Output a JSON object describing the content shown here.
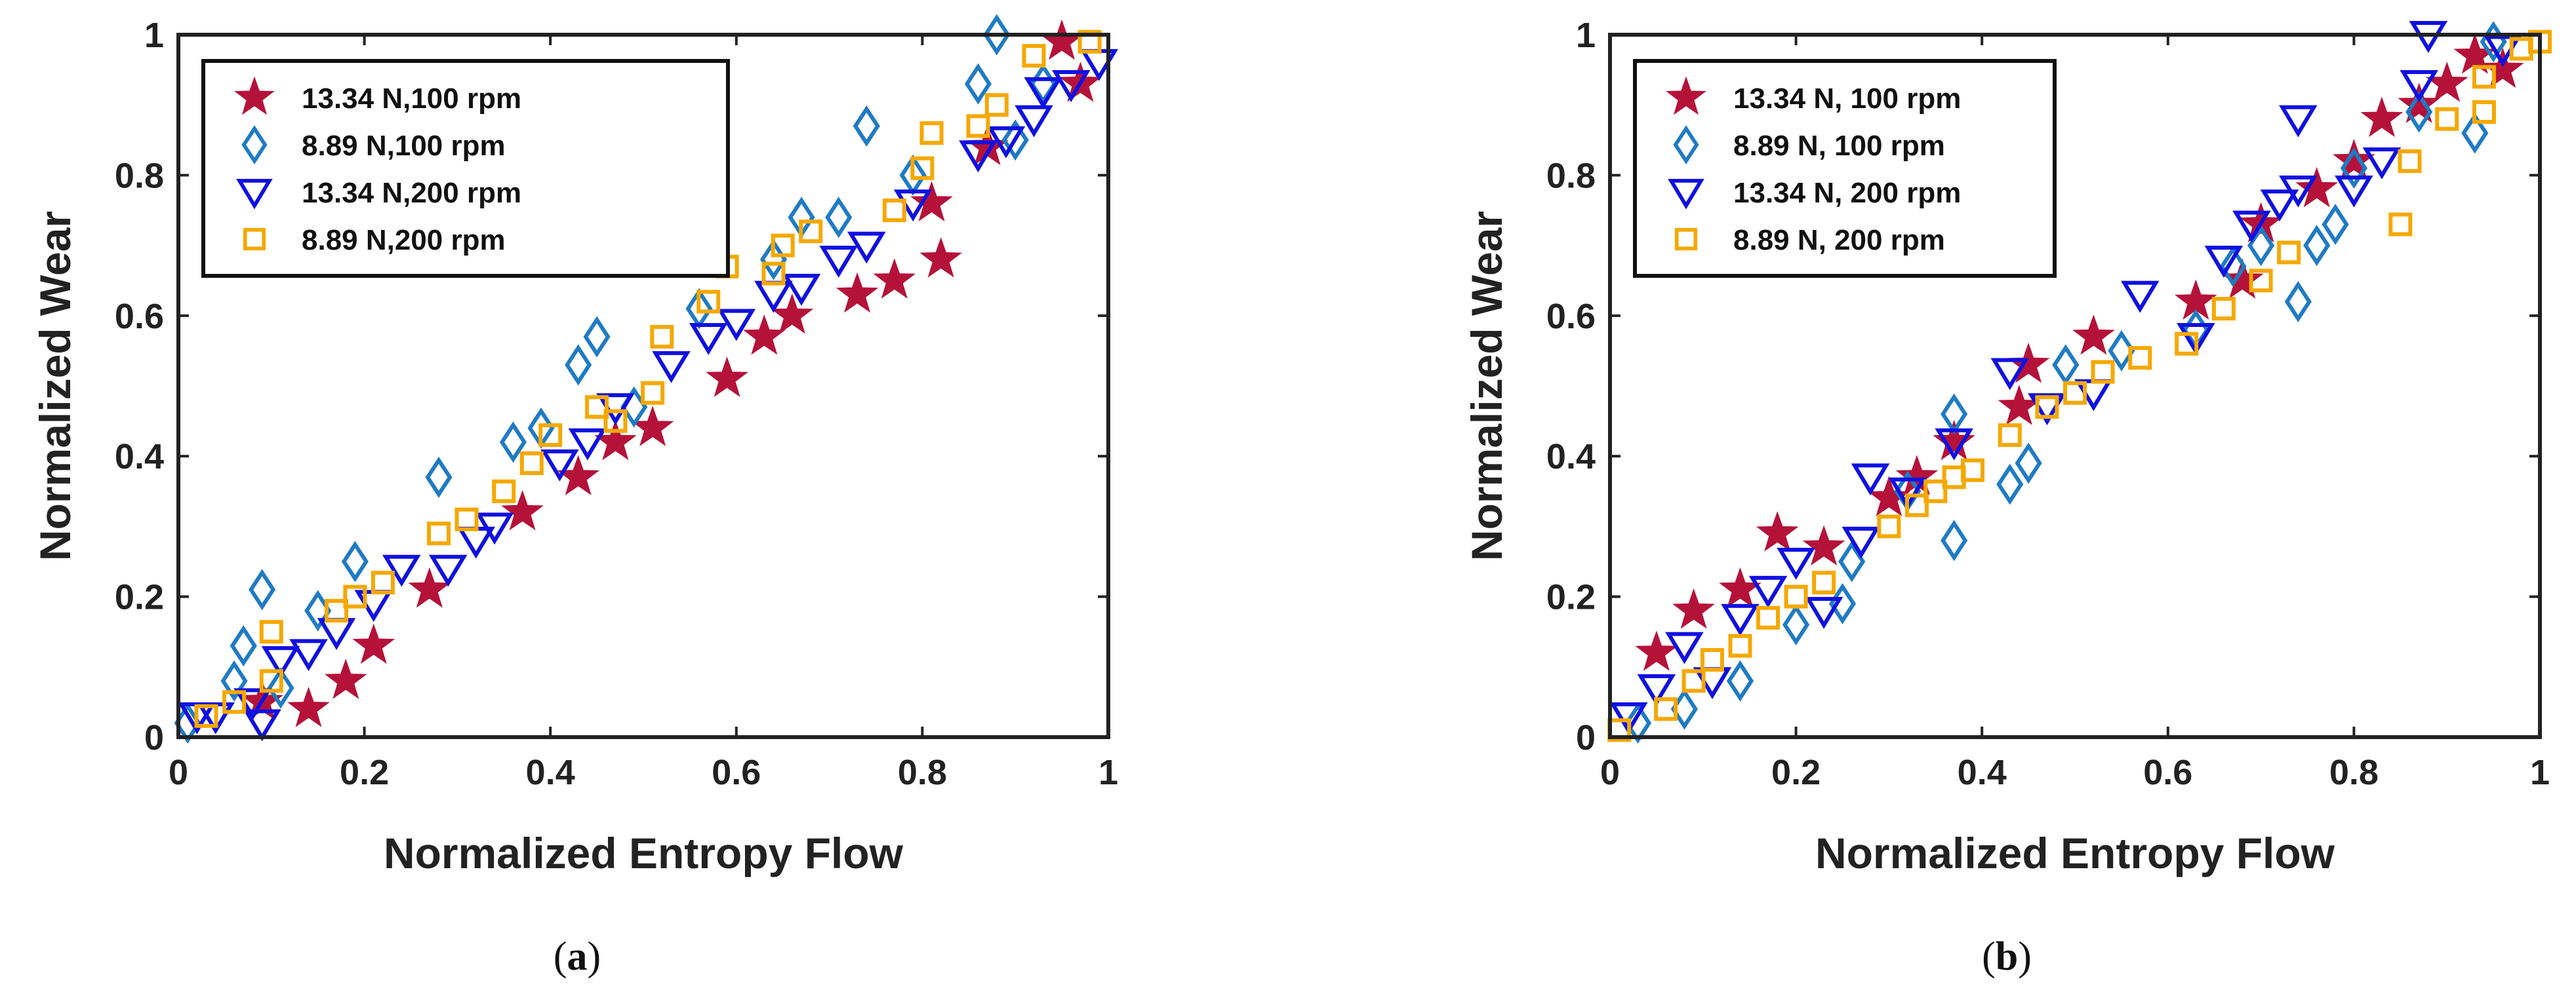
{
  "colors": {
    "red": "#b5123a",
    "teal": "#1f7bc4",
    "blue": "#1010e0",
    "orange": "#f5a800",
    "axis": "#222222"
  },
  "chart_data": [
    {
      "type": "scatter",
      "caption_open": "(",
      "caption_letter": "a",
      "caption_close": ")",
      "xlabel": "Normalized Entropy Flow",
      "ylabel": "Normalized Wear",
      "xlim": [
        0,
        1
      ],
      "ylim": [
        0,
        1
      ],
      "xticks": [
        "0",
        "0.2",
        "0.4",
        "0.6",
        "0.8",
        "1"
      ],
      "yticks": [
        "0",
        "0.2",
        "0.4",
        "0.6",
        "0.8",
        "1"
      ],
      "legend_position": "top-left",
      "series": [
        {
          "name": "13.34 N,100 rpm",
          "marker": "star",
          "color": "#b5123a",
          "points": [
            [
              0.09,
              0.05
            ],
            [
              0.14,
              0.04
            ],
            [
              0.18,
              0.08
            ],
            [
              0.21,
              0.13
            ],
            [
              0.27,
              0.21
            ],
            [
              0.37,
              0.32
            ],
            [
              0.43,
              0.37
            ],
            [
              0.47,
              0.42
            ],
            [
              0.51,
              0.44
            ],
            [
              0.59,
              0.51
            ],
            [
              0.63,
              0.57
            ],
            [
              0.66,
              0.6
            ],
            [
              0.73,
              0.63
            ],
            [
              0.77,
              0.65
            ],
            [
              0.81,
              0.76
            ],
            [
              0.82,
              0.68
            ],
            [
              0.87,
              0.84
            ],
            [
              0.95,
              0.99
            ],
            [
              0.97,
              0.93
            ]
          ]
        },
        {
          "name": "8.89 N,100 rpm",
          "marker": "diamond",
          "color": "#1f7bc4",
          "points": [
            [
              0.01,
              0.02
            ],
            [
              0.06,
              0.08
            ],
            [
              0.07,
              0.13
            ],
            [
              0.09,
              0.21
            ],
            [
              0.11,
              0.07
            ],
            [
              0.15,
              0.18
            ],
            [
              0.19,
              0.25
            ],
            [
              0.28,
              0.37
            ],
            [
              0.36,
              0.42
            ],
            [
              0.39,
              0.44
            ],
            [
              0.43,
              0.53
            ],
            [
              0.45,
              0.57
            ],
            [
              0.49,
              0.47
            ],
            [
              0.56,
              0.61
            ],
            [
              0.64,
              0.68
            ],
            [
              0.67,
              0.74
            ],
            [
              0.71,
              0.74
            ],
            [
              0.74,
              0.87
            ],
            [
              0.79,
              0.8
            ],
            [
              0.86,
              0.93
            ],
            [
              0.88,
              1.0
            ],
            [
              0.9,
              0.85
            ],
            [
              0.93,
              0.93
            ]
          ]
        },
        {
          "name": "13.34 N,200 rpm",
          "marker": "triangle-down",
          "color": "#1010e0",
          "points": [
            [
              0.02,
              0.03
            ],
            [
              0.04,
              0.03
            ],
            [
              0.08,
              0.05
            ],
            [
              0.09,
              0.02
            ],
            [
              0.11,
              0.11
            ],
            [
              0.14,
              0.12
            ],
            [
              0.17,
              0.15
            ],
            [
              0.21,
              0.19
            ],
            [
              0.24,
              0.24
            ],
            [
              0.29,
              0.24
            ],
            [
              0.32,
              0.28
            ],
            [
              0.34,
              0.3
            ],
            [
              0.41,
              0.39
            ],
            [
              0.44,
              0.42
            ],
            [
              0.47,
              0.47
            ],
            [
              0.53,
              0.53
            ],
            [
              0.57,
              0.57
            ],
            [
              0.6,
              0.59
            ],
            [
              0.64,
              0.63
            ],
            [
              0.67,
              0.64
            ],
            [
              0.71,
              0.68
            ],
            [
              0.74,
              0.7
            ],
            [
              0.79,
              0.76
            ],
            [
              0.86,
              0.83
            ],
            [
              0.89,
              0.85
            ],
            [
              0.92,
              0.88
            ],
            [
              0.93,
              0.92
            ],
            [
              0.96,
              0.93
            ],
            [
              0.99,
              0.96
            ]
          ]
        },
        {
          "name": "8.89 N,200 rpm",
          "marker": "square",
          "color": "#f5a800",
          "points": [
            [
              0.03,
              0.03
            ],
            [
              0.06,
              0.05
            ],
            [
              0.1,
              0.08
            ],
            [
              0.1,
              0.15
            ],
            [
              0.17,
              0.18
            ],
            [
              0.19,
              0.2
            ],
            [
              0.22,
              0.22
            ],
            [
              0.28,
              0.29
            ],
            [
              0.31,
              0.31
            ],
            [
              0.35,
              0.35
            ],
            [
              0.38,
              0.39
            ],
            [
              0.4,
              0.43
            ],
            [
              0.45,
              0.47
            ],
            [
              0.47,
              0.45
            ],
            [
              0.51,
              0.49
            ],
            [
              0.52,
              0.57
            ],
            [
              0.57,
              0.62
            ],
            [
              0.59,
              0.67
            ],
            [
              0.64,
              0.66
            ],
            [
              0.65,
              0.7
            ],
            [
              0.68,
              0.72
            ],
            [
              0.77,
              0.75
            ],
            [
              0.8,
              0.81
            ],
            [
              0.81,
              0.86
            ],
            [
              0.86,
              0.87
            ],
            [
              0.88,
              0.9
            ],
            [
              0.92,
              0.97
            ],
            [
              0.98,
              0.99
            ]
          ]
        }
      ]
    },
    {
      "type": "scatter",
      "caption_open": "(",
      "caption_letter": "b",
      "caption_close": ")",
      "xlabel": "Normalized Entropy Flow",
      "ylabel": "Normalized Wear",
      "xlim": [
        0,
        1
      ],
      "ylim": [
        0,
        1
      ],
      "xticks": [
        "0",
        "0.2",
        "0.4",
        "0.6",
        "0.8",
        "1"
      ],
      "yticks": [
        "0",
        "0.2",
        "0.4",
        "0.6",
        "0.8",
        "1"
      ],
      "legend_position": "top-left",
      "series": [
        {
          "name": "13.34 N, 100 rpm",
          "marker": "star",
          "color": "#b5123a",
          "points": [
            [
              0.05,
              0.12
            ],
            [
              0.09,
              0.18
            ],
            [
              0.14,
              0.21
            ],
            [
              0.18,
              0.29
            ],
            [
              0.23,
              0.27
            ],
            [
              0.3,
              0.34
            ],
            [
              0.33,
              0.37
            ],
            [
              0.37,
              0.42
            ],
            [
              0.44,
              0.47
            ],
            [
              0.45,
              0.53
            ],
            [
              0.52,
              0.57
            ],
            [
              0.63,
              0.62
            ],
            [
              0.68,
              0.65
            ],
            [
              0.7,
              0.73
            ],
            [
              0.76,
              0.78
            ],
            [
              0.8,
              0.82
            ],
            [
              0.83,
              0.88
            ],
            [
              0.87,
              0.9
            ],
            [
              0.9,
              0.93
            ],
            [
              0.93,
              0.97
            ],
            [
              0.96,
              0.95
            ]
          ]
        },
        {
          "name": "8.89 N, 100 rpm",
          "marker": "diamond",
          "color": "#1f7bc4",
          "points": [
            [
              0.03,
              0.02
            ],
            [
              0.08,
              0.04
            ],
            [
              0.14,
              0.08
            ],
            [
              0.2,
              0.16
            ],
            [
              0.25,
              0.19
            ],
            [
              0.26,
              0.25
            ],
            [
              0.32,
              0.35
            ],
            [
              0.37,
              0.28
            ],
            [
              0.37,
              0.46
            ],
            [
              0.43,
              0.36
            ],
            [
              0.45,
              0.39
            ],
            [
              0.49,
              0.53
            ],
            [
              0.55,
              0.55
            ],
            [
              0.63,
              0.58
            ],
            [
              0.67,
              0.67
            ],
            [
              0.7,
              0.7
            ],
            [
              0.74,
              0.62
            ],
            [
              0.76,
              0.7
            ],
            [
              0.78,
              0.73
            ],
            [
              0.8,
              0.81
            ],
            [
              0.87,
              0.89
            ],
            [
              0.93,
              0.86
            ],
            [
              0.95,
              0.99
            ]
          ]
        },
        {
          "name": "13.34 N, 200 rpm",
          "marker": "triangle-down",
          "color": "#1010e0",
          "points": [
            [
              0.02,
              0.03
            ],
            [
              0.05,
              0.07
            ],
            [
              0.08,
              0.13
            ],
            [
              0.11,
              0.08
            ],
            [
              0.14,
              0.17
            ],
            [
              0.17,
              0.21
            ],
            [
              0.2,
              0.25
            ],
            [
              0.23,
              0.18
            ],
            [
              0.27,
              0.28
            ],
            [
              0.28,
              0.37
            ],
            [
              0.32,
              0.35
            ],
            [
              0.37,
              0.42
            ],
            [
              0.43,
              0.52
            ],
            [
              0.47,
              0.47
            ],
            [
              0.52,
              0.49
            ],
            [
              0.57,
              0.63
            ],
            [
              0.63,
              0.57
            ],
            [
              0.66,
              0.68
            ],
            [
              0.69,
              0.73
            ],
            [
              0.72,
              0.76
            ],
            [
              0.74,
              0.78
            ],
            [
              0.74,
              0.88
            ],
            [
              0.8,
              0.78
            ],
            [
              0.83,
              0.82
            ],
            [
              0.87,
              0.93
            ],
            [
              0.88,
              1.0
            ],
            [
              0.96,
              0.98
            ]
          ]
        },
        {
          "name": "8.89 N, 200 rpm",
          "marker": "square",
          "color": "#f5a800",
          "points": [
            [
              0.01,
              0.01
            ],
            [
              0.06,
              0.04
            ],
            [
              0.09,
              0.08
            ],
            [
              0.11,
              0.11
            ],
            [
              0.14,
              0.13
            ],
            [
              0.17,
              0.17
            ],
            [
              0.2,
              0.2
            ],
            [
              0.23,
              0.22
            ],
            [
              0.3,
              0.3
            ],
            [
              0.33,
              0.33
            ],
            [
              0.35,
              0.35
            ],
            [
              0.37,
              0.37
            ],
            [
              0.39,
              0.38
            ],
            [
              0.43,
              0.43
            ],
            [
              0.47,
              0.47
            ],
            [
              0.5,
              0.49
            ],
            [
              0.53,
              0.52
            ],
            [
              0.57,
              0.54
            ],
            [
              0.62,
              0.56
            ],
            [
              0.66,
              0.61
            ],
            [
              0.7,
              0.65
            ],
            [
              0.73,
              0.69
            ],
            [
              0.85,
              0.73
            ],
            [
              0.86,
              0.82
            ],
            [
              0.9,
              0.88
            ],
            [
              0.94,
              0.89
            ],
            [
              0.94,
              0.94
            ],
            [
              0.98,
              0.98
            ],
            [
              1.0,
              0.99
            ]
          ]
        }
      ]
    }
  ]
}
